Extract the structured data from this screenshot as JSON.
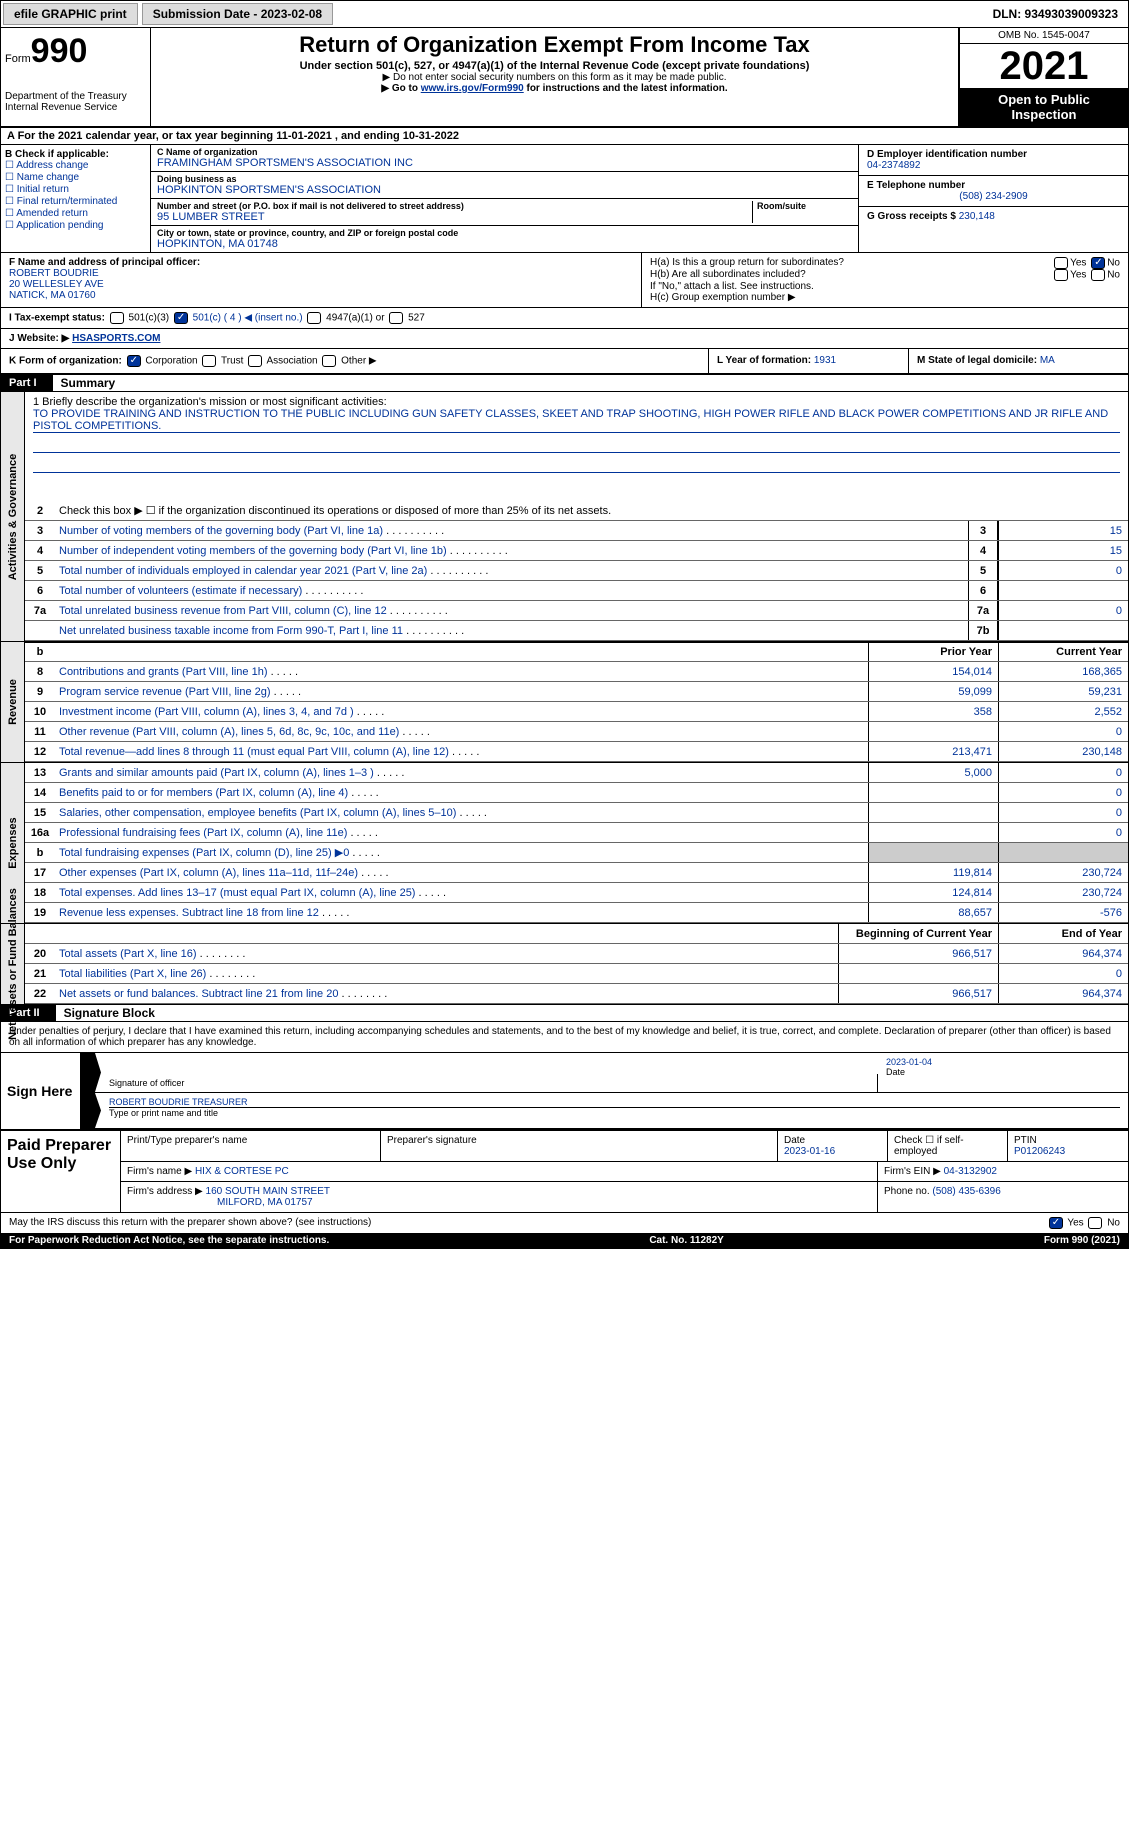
{
  "topbar": {
    "efile_btn": "efile GRAPHIC print",
    "sub_date": "Submission Date - 2023-02-08",
    "dln": "DLN: 93493039009323"
  },
  "header": {
    "form_label": "Form",
    "form_num": "990",
    "dept": "Department of the Treasury Internal Revenue Service",
    "title": "Return of Organization Exempt From Income Tax",
    "subtitle": "Under section 501(c), 527, or 4947(a)(1) of the Internal Revenue Code (except private foundations)",
    "note1": "▶ Do not enter social security numbers on this form as it may be made public.",
    "note2_pre": "▶ Go to ",
    "note2_link": "www.irs.gov/Form990",
    "note2_post": " for instructions and the latest information.",
    "omb": "OMB No. 1545-0047",
    "year": "2021",
    "open_pub": "Open to Public Inspection"
  },
  "row_a": "A For the 2021 calendar year, or tax year beginning 11-01-2021    , and ending 10-31-2022",
  "section_b": {
    "label": "B Check if applicable:",
    "items": [
      "☐ Address change",
      "☐ Name change",
      "☐ Initial return",
      "☐ Final return/terminated",
      "☐ Amended return",
      "☐ Application pending"
    ]
  },
  "section_c": {
    "name_lbl": "C Name of organization",
    "name_val": "FRAMINGHAM SPORTSMEN'S ASSOCIATION INC",
    "dba_lbl": "Doing business as",
    "dba_val": "HOPKINTON SPORTSMEN'S ASSOCIATION",
    "street_lbl": "Number and street (or P.O. box if mail is not delivered to street address)",
    "street_val": "95 LUMBER STREET",
    "room_lbl": "Room/suite",
    "city_lbl": "City or town, state or province, country, and ZIP or foreign postal code",
    "city_val": "HOPKINTON, MA  01748"
  },
  "section_d": {
    "ein_lbl": "D Employer identification number",
    "ein_val": "04-2374892",
    "phone_lbl": "E Telephone number",
    "phone_val": "(508) 234-2909",
    "gross_lbl": "G Gross receipts $",
    "gross_val": "230,148"
  },
  "section_f": {
    "lbl": "F Name and address of principal officer:",
    "name": "ROBERT BOUDRIE",
    "addr1": "20 WELLESLEY AVE",
    "addr2": "NATICK, MA  01760"
  },
  "section_h": {
    "ha": "H(a)  Is this a group return for subordinates?",
    "hb": "H(b)  Are all subordinates included?",
    "hb_note": "If \"No,\" attach a list. See instructions.",
    "hc": "H(c)  Group exemption number ▶",
    "yes": "Yes",
    "no": "No"
  },
  "row_i": {
    "lbl": "I    Tax-exempt status:",
    "opt1": "501(c)(3)",
    "opt2": "501(c) ( 4 ) ◀ (insert no.)",
    "opt3": "4947(a)(1) or",
    "opt4": "527"
  },
  "row_j": {
    "lbl": "J   Website: ▶",
    "val": "HSASPORTS.COM"
  },
  "row_k": {
    "lbl": "K Form of organization:",
    "corp": "Corporation",
    "trust": "Trust",
    "assoc": "Association",
    "other": "Other ▶"
  },
  "row_l": {
    "lbl": "L Year of formation:",
    "val": "1931"
  },
  "row_m": {
    "lbl": "M State of legal domicile:",
    "val": "MA"
  },
  "part1": {
    "hdr": "Part I",
    "title": "Summary",
    "line1_lbl": "1  Briefly describe the organization's mission or most significant activities:",
    "mission": "TO PROVIDE TRAINING AND INSTRUCTION TO THE PUBLIC INCLUDING GUN SAFETY CLASSES, SKEET AND TRAP SHOOTING, HIGH POWER RIFLE AND BLACK POWER COMPETITIONS AND JR RIFLE AND PISTOL COMPETITIONS.",
    "line2": "Check this box ▶ ☐  if the organization discontinued its operations or disposed of more than 25% of its net assets."
  },
  "side_labels": {
    "gov": "Activities & Governance",
    "rev": "Revenue",
    "exp": "Expenses",
    "net": "Net Assets or Fund Balances"
  },
  "gov_lines": [
    {
      "n": "3",
      "t": "Number of voting members of the governing body (Part VI, line 1a)",
      "b": "3",
      "v": "15"
    },
    {
      "n": "4",
      "t": "Number of independent voting members of the governing body (Part VI, line 1b)",
      "b": "4",
      "v": "15"
    },
    {
      "n": "5",
      "t": "Total number of individuals employed in calendar year 2021 (Part V, line 2a)",
      "b": "5",
      "v": "0"
    },
    {
      "n": "6",
      "t": "Total number of volunteers (estimate if necessary)",
      "b": "6",
      "v": ""
    },
    {
      "n": "7a",
      "t": "Total unrelated business revenue from Part VIII, column (C), line 12",
      "b": "7a",
      "v": "0"
    },
    {
      "n": "",
      "t": "Net unrelated business taxable income from Form 990-T, Part I, line 11",
      "b": "7b",
      "v": ""
    }
  ],
  "hdr_cols": {
    "prior": "Prior Year",
    "current": "Current Year",
    "begin": "Beginning of Current Year",
    "end": "End of Year"
  },
  "rev_lines": [
    {
      "n": "8",
      "t": "Contributions and grants (Part VIII, line 1h)",
      "p": "154,014",
      "c": "168,365"
    },
    {
      "n": "9",
      "t": "Program service revenue (Part VIII, line 2g)",
      "p": "59,099",
      "c": "59,231"
    },
    {
      "n": "10",
      "t": "Investment income (Part VIII, column (A), lines 3, 4, and 7d )",
      "p": "358",
      "c": "2,552"
    },
    {
      "n": "11",
      "t": "Other revenue (Part VIII, column (A), lines 5, 6d, 8c, 9c, 10c, and 11e)",
      "p": "",
      "c": "0"
    },
    {
      "n": "12",
      "t": "Total revenue—add lines 8 through 11 (must equal Part VIII, column (A), line 12)",
      "p": "213,471",
      "c": "230,148"
    }
  ],
  "exp_lines": [
    {
      "n": "13",
      "t": "Grants and similar amounts paid (Part IX, column (A), lines 1–3 )",
      "p": "5,000",
      "c": "0"
    },
    {
      "n": "14",
      "t": "Benefits paid to or for members (Part IX, column (A), line 4)",
      "p": "",
      "c": "0"
    },
    {
      "n": "15",
      "t": "Salaries, other compensation, employee benefits (Part IX, column (A), lines 5–10)",
      "p": "",
      "c": "0"
    },
    {
      "n": "16a",
      "t": "Professional fundraising fees (Part IX, column (A), line 11e)",
      "p": "",
      "c": "0"
    },
    {
      "n": "b",
      "t": "Total fundraising expenses (Part IX, column (D), line 25) ▶0",
      "p": "GRAY",
      "c": "GRAY"
    },
    {
      "n": "17",
      "t": "Other expenses (Part IX, column (A), lines 11a–11d, 11f–24e)",
      "p": "119,814",
      "c": "230,724"
    },
    {
      "n": "18",
      "t": "Total expenses. Add lines 13–17 (must equal Part IX, column (A), line 25)",
      "p": "124,814",
      "c": "230,724"
    },
    {
      "n": "19",
      "t": "Revenue less expenses. Subtract line 18 from line 12",
      "p": "88,657",
      "c": "-576"
    }
  ],
  "net_lines": [
    {
      "n": "20",
      "t": "Total assets (Part X, line 16)",
      "p": "966,517",
      "c": "964,374"
    },
    {
      "n": "21",
      "t": "Total liabilities (Part X, line 26)",
      "p": "",
      "c": "0"
    },
    {
      "n": "22",
      "t": "Net assets or fund balances. Subtract line 21 from line 20",
      "p": "966,517",
      "c": "964,374"
    }
  ],
  "part2": {
    "hdr": "Part II",
    "title": "Signature Block",
    "intro": "Under penalties of perjury, I declare that I have examined this return, including accompanying schedules and statements, and to the best of my knowledge and belief, it is true, correct, and complete. Declaration of preparer (other than officer) is based on all information of which preparer has any knowledge."
  },
  "sign": {
    "lbl": "Sign Here",
    "sig_of": "Signature of officer",
    "date": "Date",
    "date_val": "2023-01-04",
    "name": "ROBERT BOUDRIE  TREASURER",
    "name_lbl": "Type or print name and title"
  },
  "prep": {
    "lbl": "Paid Preparer Use Only",
    "print_lbl": "Print/Type preparer's name",
    "sig_lbl": "Preparer's signature",
    "date_lbl": "Date",
    "date_val": "2023-01-16",
    "check_lbl": "Check ☐ if self-employed",
    "ptin_lbl": "PTIN",
    "ptin_val": "P01206243",
    "firm_name_lbl": "Firm's name     ▶",
    "firm_name": "HIX & CORTESE PC",
    "firm_ein_lbl": "Firm's EIN ▶",
    "firm_ein": "04-3132902",
    "firm_addr_lbl": "Firm's address ▶",
    "firm_addr": "160 SOUTH MAIN STREET",
    "firm_addr2": "MILFORD, MA  01757",
    "phone_lbl": "Phone no.",
    "phone": "(508) 435-6396"
  },
  "footer": {
    "q": "May the IRS discuss this return with the preparer shown above? (see instructions)",
    "yes": "Yes",
    "no": "No",
    "notice": "For Paperwork Reduction Act Notice, see the separate instructions.",
    "cat": "Cat. No. 11282Y",
    "form": "Form 990 (2021)"
  }
}
